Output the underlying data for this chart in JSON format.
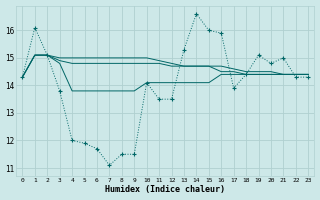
{
  "xlabel": "Humidex (Indice chaleur)",
  "bg_color": "#cde8e8",
  "line_color": "#006666",
  "grid_color": "#b0d0d0",
  "ylim": [
    10.7,
    16.9
  ],
  "xlim": [
    -0.5,
    23.5
  ],
  "yticks": [
    11,
    12,
    13,
    14,
    15,
    16
  ],
  "xticks": [
    0,
    1,
    2,
    3,
    4,
    5,
    6,
    7,
    8,
    9,
    10,
    11,
    12,
    13,
    14,
    15,
    16,
    17,
    18,
    19,
    20,
    21,
    22,
    23
  ],
  "series_dotted": [
    14.3,
    16.1,
    15.1,
    13.8,
    12.0,
    11.9,
    11.7,
    11.1,
    11.5,
    11.5,
    14.1,
    13.5,
    13.5,
    15.3,
    16.6,
    16.0,
    15.9,
    13.9,
    14.4,
    15.1,
    14.8,
    15.0,
    14.3,
    14.3
  ],
  "series_smooth": [
    [
      14.3,
      15.1,
      15.1,
      15.0,
      15.0,
      15.0,
      15.0,
      15.0,
      15.0,
      15.0,
      15.0,
      14.9,
      14.8,
      14.7,
      14.7,
      14.7,
      14.7,
      14.6,
      14.5,
      14.5,
      14.5,
      14.4,
      14.4,
      14.4
    ],
    [
      14.3,
      15.1,
      15.1,
      14.9,
      14.8,
      14.8,
      14.8,
      14.8,
      14.8,
      14.8,
      14.8,
      14.8,
      14.7,
      14.7,
      14.7,
      14.7,
      14.5,
      14.5,
      14.4,
      14.4,
      14.4,
      14.4,
      14.4,
      14.4
    ],
    [
      14.3,
      15.1,
      15.1,
      14.8,
      13.8,
      13.8,
      13.8,
      13.8,
      13.8,
      13.8,
      14.1,
      14.1,
      14.1,
      14.1,
      14.1,
      14.1,
      14.4,
      14.4,
      14.4,
      14.4,
      14.4,
      14.4,
      14.4,
      14.4
    ]
  ]
}
